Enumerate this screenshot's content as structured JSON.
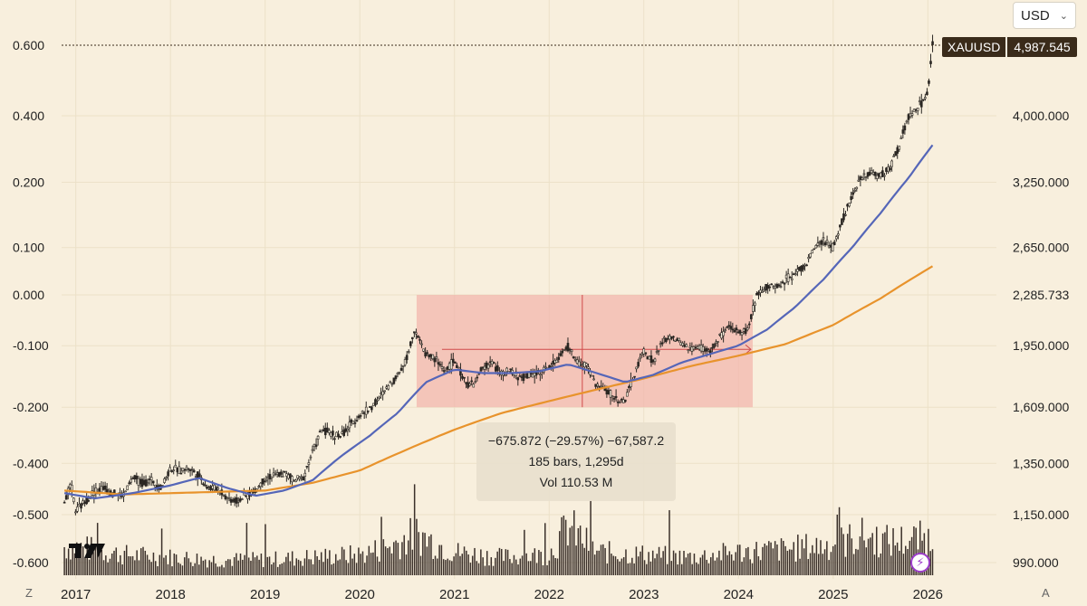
{
  "currency_selector": {
    "value": "USD",
    "chevron_icon": "chevron-down-icon"
  },
  "symbol_label": {
    "symbol": "XAUUSD",
    "price": "4,987.545"
  },
  "measure_tool": {
    "line1": "−675.872 (−29.57%) −67,587.2",
    "line2": "185 bars, 1,295d",
    "line3": "Vol 110.53 M"
  },
  "corner_buttons": {
    "left": "Z",
    "right": "A"
  },
  "logo_text": "TV",
  "colors": {
    "background": "#f8efdd",
    "candle": "#2b2723",
    "volume": "#3b302a",
    "ma_fast": "#5566b8",
    "ma_slow": "#e8932c",
    "measure_fill": "#f2b3aa",
    "measure_line": "#d04a4a"
  },
  "chart_data": {
    "type": "candlestick",
    "title": "XAUUSD",
    "x_ticks": [
      "2017",
      "2018",
      "2019",
      "2020",
      "2021",
      "2022",
      "2023",
      "2024",
      "2025",
      "2026"
    ],
    "x_tick_values": [
      2017,
      2018,
      2019,
      2020,
      2021,
      2022,
      2023,
      2024,
      2025,
      2026
    ],
    "x_range": [
      2016.85,
      2026.15
    ],
    "left_axis": {
      "labels": [
        "0.600",
        "0.400",
        "0.200",
        "0.100",
        "0.000",
        "-0.100",
        "-0.200",
        "-0.400",
        "-0.500",
        "-0.600"
      ],
      "note": "percent-change scale aligned with right price axis"
    },
    "right_axis": {
      "labels": [
        "4,000.000",
        "3,250.000",
        "2,650.000",
        "2,285.733",
        "1,950.000",
        "1,609.000",
        "1,350.000",
        "1,150.000",
        "990.000"
      ],
      "values": [
        4000,
        3250,
        2650,
        2285.733,
        1950,
        1609,
        1350,
        1150,
        990
      ],
      "scale": "log"
    },
    "last_price": 4987.545,
    "price_series": {
      "x": [
        2016.88,
        2016.95,
        2017.0,
        2017.1,
        2017.2,
        2017.3,
        2017.4,
        2017.5,
        2017.6,
        2017.7,
        2017.8,
        2017.9,
        2018.0,
        2018.1,
        2018.2,
        2018.3,
        2018.4,
        2018.5,
        2018.6,
        2018.7,
        2018.8,
        2018.9,
        2019.0,
        2019.1,
        2019.2,
        2019.3,
        2019.4,
        2019.5,
        2019.6,
        2019.7,
        2019.8,
        2019.9,
        2020.0,
        2020.1,
        2020.2,
        2020.3,
        2020.4,
        2020.5,
        2020.58,
        2020.65,
        2020.7,
        2020.8,
        2020.9,
        2021.0,
        2021.1,
        2021.2,
        2021.3,
        2021.4,
        2021.5,
        2021.6,
        2021.7,
        2021.8,
        2021.9,
        2022.0,
        2022.1,
        2022.2,
        2022.3,
        2022.4,
        2022.5,
        2022.6,
        2022.7,
        2022.8,
        2022.9,
        2023.0,
        2023.1,
        2023.2,
        2023.3,
        2023.4,
        2023.5,
        2023.6,
        2023.7,
        2023.8,
        2023.9,
        2024.0,
        2024.1,
        2024.2,
        2024.3,
        2024.4,
        2024.5,
        2024.6,
        2024.7,
        2024.8,
        2024.9,
        2025.0,
        2025.1,
        2025.2,
        2025.3,
        2025.4,
        2025.5,
        2025.6,
        2025.7,
        2025.8,
        2025.9,
        2026.0,
        2026.05
      ],
      "y": [
        1200,
        1260,
        1160,
        1200,
        1240,
        1250,
        1230,
        1220,
        1290,
        1270,
        1280,
        1250,
        1330,
        1320,
        1330,
        1300,
        1250,
        1250,
        1210,
        1200,
        1220,
        1240,
        1290,
        1300,
        1310,
        1280,
        1290,
        1400,
        1500,
        1480,
        1470,
        1520,
        1570,
        1600,
        1650,
        1720,
        1780,
        1880,
        2060,
        1950,
        1900,
        1870,
        1800,
        1860,
        1750,
        1720,
        1820,
        1850,
        1780,
        1800,
        1760,
        1780,
        1800,
        1820,
        1880,
        1940,
        1850,
        1830,
        1720,
        1700,
        1650,
        1640,
        1780,
        1920,
        1850,
        1980,
        2000,
        1960,
        1930,
        1940,
        1910,
        2000,
        2060,
        2040,
        2050,
        2300,
        2350,
        2340,
        2400,
        2450,
        2500,
        2640,
        2700,
        2650,
        2900,
        3100,
        3300,
        3350,
        3320,
        3400,
        3650,
        4000,
        4100,
        4300,
        4987
      ]
    },
    "ma_fast_series": {
      "name": "Moving average (fast)",
      "x": [
        2016.88,
        2017.2,
        2017.6,
        2018.0,
        2018.3,
        2018.6,
        2018.9,
        2019.2,
        2019.5,
        2019.8,
        2020.1,
        2020.4,
        2020.7,
        2021.0,
        2021.3,
        2021.6,
        2021.9,
        2022.2,
        2022.5,
        2022.8,
        2023.1,
        2023.4,
        2023.7,
        2024.0,
        2024.3,
        2024.6,
        2024.9,
        2025.2,
        2025.5,
        2025.8,
        2026.05
      ],
      "y": [
        1230,
        1210,
        1230,
        1260,
        1290,
        1250,
        1220,
        1240,
        1280,
        1380,
        1470,
        1580,
        1740,
        1810,
        1790,
        1790,
        1800,
        1840,
        1790,
        1740,
        1780,
        1850,
        1900,
        1950,
        2050,
        2200,
        2400,
        2650,
        2950,
        3300,
        3650
      ]
    },
    "ma_slow_series": {
      "name": "Moving average (slow)",
      "x": [
        2016.88,
        2017.5,
        2018.0,
        2018.5,
        2019.0,
        2019.5,
        2020.0,
        2020.5,
        2021.0,
        2021.5,
        2022.0,
        2022.5,
        2023.0,
        2023.5,
        2024.0,
        2024.5,
        2025.0,
        2025.5,
        2026.05
      ],
      "y": [
        1240,
        1225,
        1230,
        1235,
        1240,
        1270,
        1320,
        1410,
        1500,
        1580,
        1640,
        1700,
        1760,
        1830,
        1890,
        1960,
        2080,
        2260,
        2500
      ]
    },
    "volume_series": {
      "x": [
        2017.0,
        2017.5,
        2018.0,
        2018.5,
        2019.0,
        2019.5,
        2020.0,
        2020.3,
        2020.6,
        2021.0,
        2021.5,
        2022.0,
        2022.2,
        2022.5,
        2023.0,
        2023.5,
        2024.0,
        2024.5,
        2025.0,
        2025.3,
        2025.6,
        2025.9
      ],
      "y": [
        55,
        40,
        35,
        30,
        30,
        35,
        40,
        55,
        80,
        45,
        35,
        40,
        95,
        45,
        40,
        35,
        45,
        50,
        60,
        75,
        65,
        70
      ],
      "unit": "relative"
    },
    "measurement": {
      "x_start": 2020.6,
      "x_end": 2024.15,
      "y_top": 2285.733,
      "y_bottom": 1609,
      "change": "−675.872 (−29.57%) −67,587.2",
      "bars_days": "185 bars, 1,295d",
      "volume": "Vol 110.53 M"
    }
  }
}
